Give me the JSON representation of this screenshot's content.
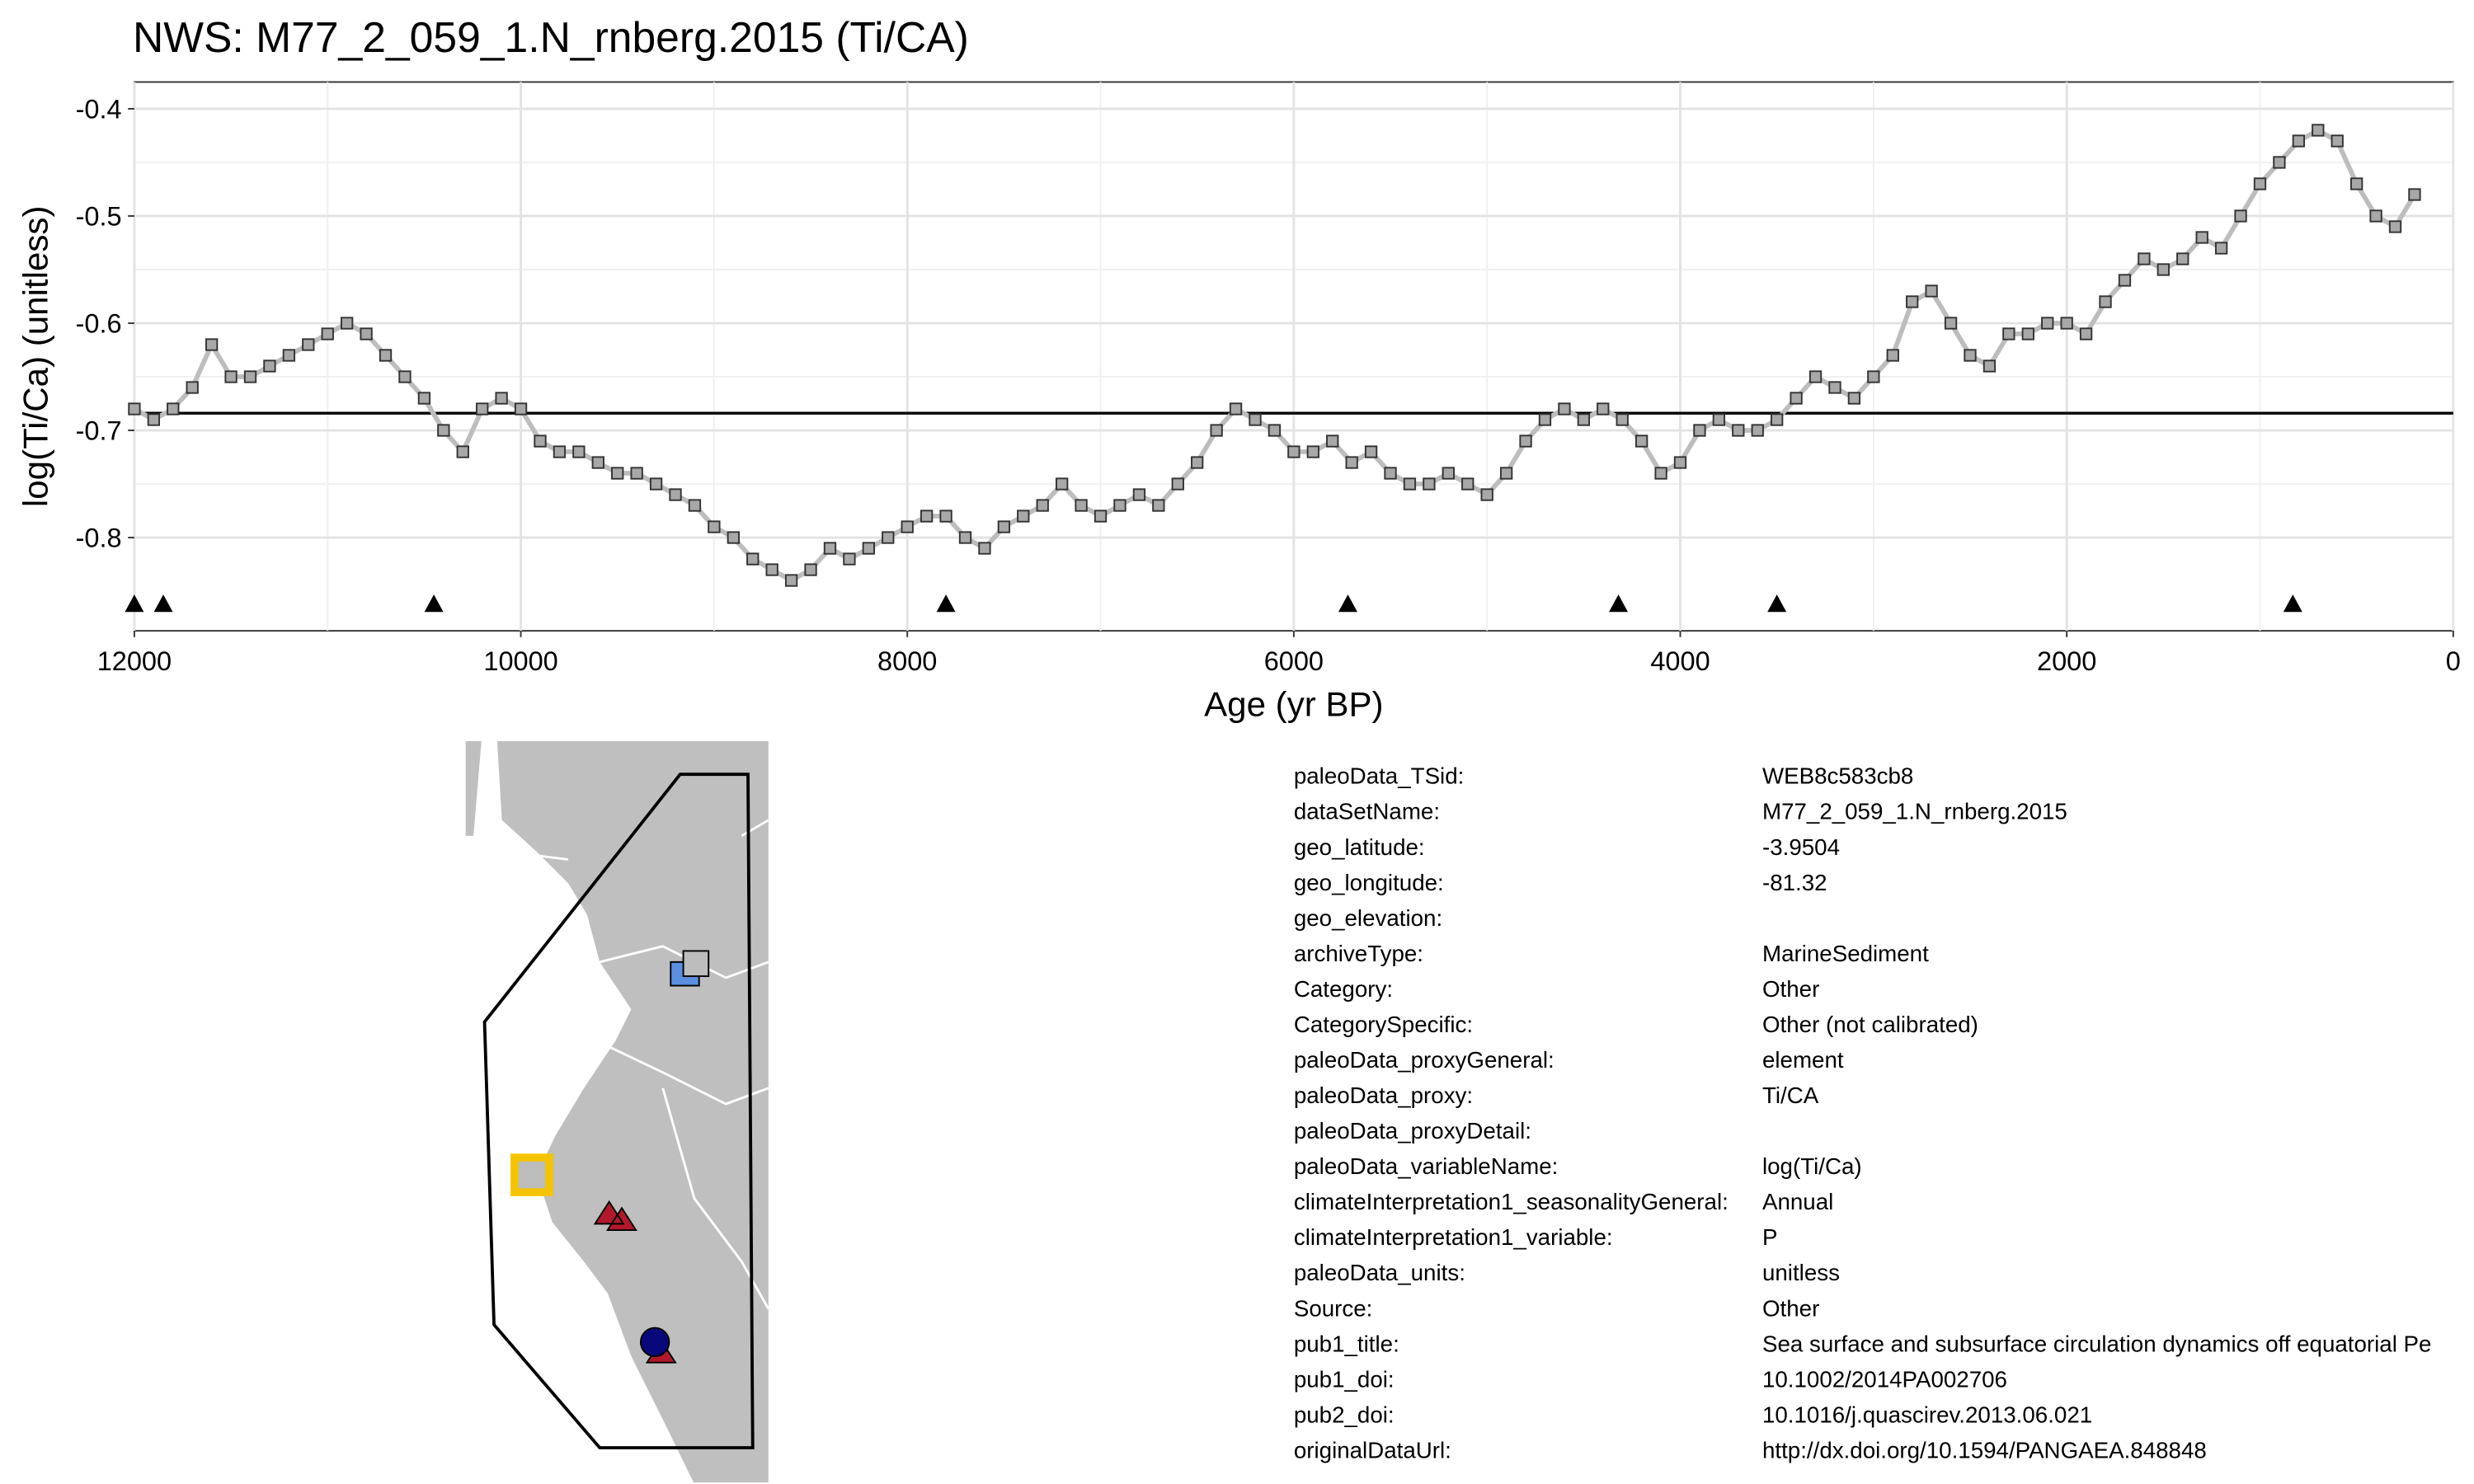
{
  "chart_data": {
    "type": "line",
    "title": "NWS: M77_2_059_1.N_rnberg.2015 (Ti/CA)",
    "x_label": "Age (yr BP)",
    "y_label": "log(Ti/Ca) (unitless)",
    "xlim": [
      12000,
      0
    ],
    "ylim": [
      -0.887,
      -0.375
    ],
    "xticks": [
      12000,
      10000,
      8000,
      6000,
      4000,
      2000,
      0
    ],
    "yticks": [
      -0.8,
      -0.7,
      -0.6,
      -0.5,
      -0.4
    ],
    "grid": true,
    "reference_line": -0.684,
    "chronology_ages": [
      12000,
      11850,
      10450,
      7800,
      5720,
      4320,
      3500,
      830
    ],
    "x": [
      12000,
      11900,
      11800,
      11700,
      11600,
      11500,
      11400,
      11300,
      11200,
      11100,
      11000,
      10900,
      10800,
      10700,
      10600,
      10500,
      10400,
      10300,
      10200,
      10100,
      10000,
      9900,
      9800,
      9700,
      9600,
      9500,
      9400,
      9300,
      9200,
      9100,
      9000,
      8900,
      8800,
      8700,
      8600,
      8500,
      8400,
      8300,
      8200,
      8100,
      8000,
      7900,
      7800,
      7700,
      7600,
      7500,
      7400,
      7300,
      7200,
      7100,
      7000,
      6900,
      6800,
      6700,
      6600,
      6500,
      6400,
      6300,
      6200,
      6100,
      6000,
      5900,
      5800,
      5700,
      5600,
      5500,
      5400,
      5300,
      5200,
      5100,
      5000,
      4900,
      4800,
      4700,
      4600,
      4500,
      4400,
      4300,
      4200,
      4100,
      4000,
      3900,
      3800,
      3700,
      3600,
      3500,
      3400,
      3300,
      3200,
      3100,
      3000,
      2900,
      2800,
      2700,
      2600,
      2500,
      2400,
      2300,
      2200,
      2100,
      2000,
      1900,
      1800,
      1700,
      1600,
      1500,
      1400,
      1300,
      1200,
      1100,
      1000,
      900,
      800,
      700,
      600,
      500,
      400,
      300,
      200
    ],
    "series": [
      {
        "name": "log(Ti/Ca)",
        "color": "#bdbdbd",
        "values": [
          -0.68,
          -0.69,
          -0.68,
          -0.66,
          -0.62,
          -0.65,
          -0.65,
          -0.64,
          -0.63,
          -0.62,
          -0.61,
          -0.6,
          -0.61,
          -0.63,
          -0.65,
          -0.67,
          -0.7,
          -0.72,
          -0.68,
          -0.67,
          -0.68,
          -0.71,
          -0.72,
          -0.72,
          -0.73,
          -0.74,
          -0.74,
          -0.75,
          -0.76,
          -0.77,
          -0.79,
          -0.8,
          -0.82,
          -0.83,
          -0.84,
          -0.83,
          -0.81,
          -0.82,
          -0.81,
          -0.8,
          -0.79,
          -0.78,
          -0.78,
          -0.8,
          -0.81,
          -0.79,
          -0.78,
          -0.77,
          -0.75,
          -0.77,
          -0.78,
          -0.77,
          -0.76,
          -0.77,
          -0.75,
          -0.73,
          -0.7,
          -0.68,
          -0.69,
          -0.7,
          -0.72,
          -0.72,
          -0.71,
          -0.73,
          -0.72,
          -0.74,
          -0.75,
          -0.75,
          -0.74,
          -0.75,
          -0.76,
          -0.74,
          -0.71,
          -0.69,
          -0.68,
          -0.69,
          -0.68,
          -0.69,
          -0.71,
          -0.74,
          -0.73,
          -0.7,
          -0.69,
          -0.7,
          -0.7,
          -0.69,
          -0.67,
          -0.65,
          -0.66,
          -0.67,
          -0.65,
          -0.63,
          -0.58,
          -0.57,
          -0.6,
          -0.63,
          -0.64,
          -0.61,
          -0.61,
          -0.6,
          -0.6,
          -0.61,
          -0.58,
          -0.56,
          -0.54,
          -0.55,
          -0.54,
          -0.52,
          -0.53,
          -0.5,
          -0.47,
          -0.45,
          -0.43,
          -0.42,
          -0.43,
          -0.47,
          -0.5,
          -0.51,
          -0.48
        ]
      }
    ]
  },
  "metadata": {
    "rows": [
      {
        "key": "paleoData_TSid:",
        "value": "WEB8c583cb8"
      },
      {
        "key": "dataSetName:",
        "value": "M77_2_059_1.N_rnberg.2015"
      },
      {
        "key": "geo_latitude:",
        "value": "-3.9504"
      },
      {
        "key": "geo_longitude:",
        "value": "-81.32"
      },
      {
        "key": "geo_elevation:"
      },
      {
        "key": "archiveType:",
        "value": "MarineSediment"
      },
      {
        "key": "Category:",
        "value": "Other"
      },
      {
        "key": "CategorySpecific:",
        "value": "Other (not calibrated)"
      },
      {
        "key": "paleoData_proxyGeneral:",
        "value": "element"
      },
      {
        "key": "paleoData_proxy:",
        "value": "Ti/CA"
      },
      {
        "key": "paleoData_proxyDetail:"
      },
      {
        "key": "paleoData_variableName:",
        "value": "log(Ti/Ca)"
      },
      {
        "key": "climateInterpretation1_seasonalityGeneral:",
        "value": "Annual"
      },
      {
        "key": "climateInterpretation1_variable:",
        "value": "P"
      },
      {
        "key": "paleoData_units:",
        "value": "unitless"
      },
      {
        "key": "Source:",
        "value": "Other"
      },
      {
        "key": "pub1_title:",
        "value": "Sea surface and subsurface circulation dynamics off equatorial Pe"
      },
      {
        "key": "pub1_doi:",
        "value": "10.1002/2014PA002706"
      },
      {
        "key": "pub2_doi:",
        "value": "10.1016/j.quascirev.2013.06.021"
      },
      {
        "key": "originalDataUrl:",
        "value": "http://dx.doi.org/10.1594/PANGAEA.848848"
      }
    ]
  }
}
